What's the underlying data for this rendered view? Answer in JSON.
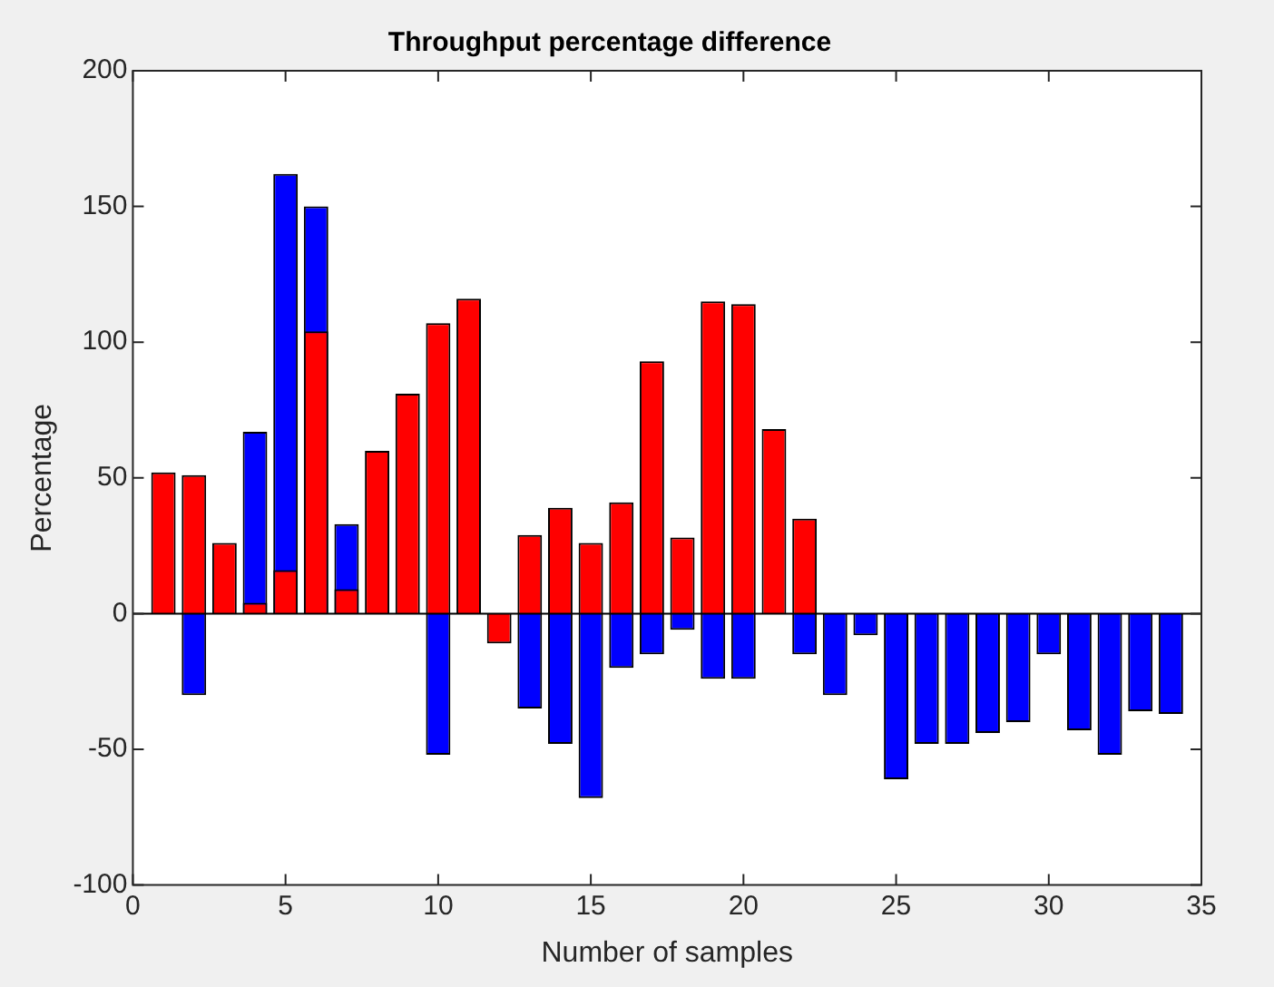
{
  "chart_data": {
    "type": "bar",
    "title": "Throughput percentage difference",
    "xlabel": "Number of samples",
    "ylabel": "Percentage",
    "x": [
      1,
      2,
      3,
      4,
      5,
      6,
      7,
      8,
      9,
      10,
      11,
      12,
      13,
      14,
      15,
      16,
      17,
      18,
      19,
      20,
      21,
      22,
      23,
      24,
      25,
      26,
      27,
      28,
      29,
      30,
      31,
      32,
      33,
      34
    ],
    "series": [
      {
        "color": "#0000ff",
        "values": [
          null,
          -30,
          null,
          67,
          162,
          150,
          33,
          null,
          null,
          -52,
          null,
          null,
          -35,
          -48,
          -68,
          -20,
          -15,
          -6,
          -24,
          -24,
          null,
          -15,
          -30,
          -8,
          -61,
          -48,
          -48,
          -44,
          -40,
          -15,
          -43,
          -52,
          -36,
          -37
        ]
      },
      {
        "color": "#ff0000",
        "values": [
          52,
          51,
          26,
          4,
          16,
          104,
          9,
          60,
          81,
          107,
          116,
          -11,
          29,
          39,
          26,
          41,
          93,
          28,
          115,
          114,
          68,
          35,
          null,
          null,
          null,
          null,
          null,
          null,
          null,
          null,
          null,
          null,
          null,
          null
        ]
      }
    ],
    "xlim": [
      0,
      35
    ],
    "xticks": [
      0,
      5,
      10,
      15,
      20,
      25,
      30,
      35
    ],
    "ylim": [
      -100,
      200
    ],
    "yticks": [
      -100,
      -50,
      0,
      50,
      100,
      150,
      200
    ],
    "grid": false,
    "legend": false,
    "ref_lines": [
      {
        "axis": "y",
        "value": 0,
        "color": "#000000"
      }
    ]
  }
}
